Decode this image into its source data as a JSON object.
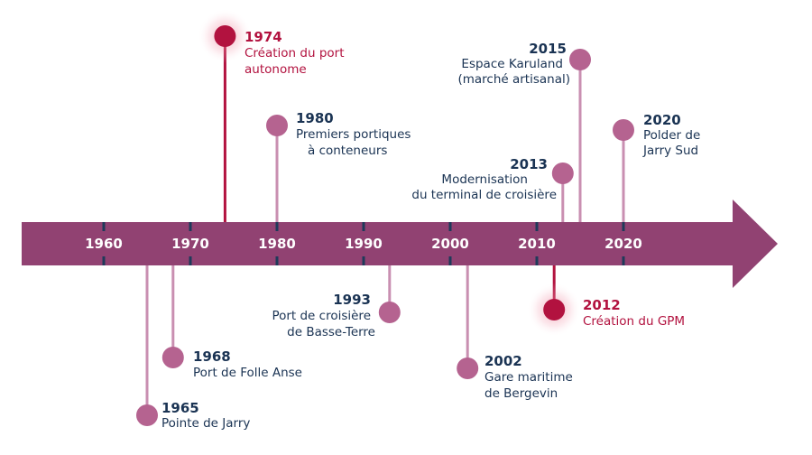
{
  "colors": {
    "band": "#914272",
    "tick": "#1f3a5a",
    "stem": "#c98fb1",
    "dot": "#b56390",
    "highlight": "#b2123f",
    "year_text": "#1a3353",
    "label_text": "#1a3353",
    "decade_text": "#ffffff"
  },
  "decades": [
    "1960",
    "1970",
    "1980",
    "1990",
    "2000",
    "2010",
    "2020"
  ],
  "events": [
    {
      "year": "1965",
      "lines": [
        "Pointe de Jarry"
      ],
      "side": "below",
      "highlight": false
    },
    {
      "year": "1968",
      "lines": [
        "Port de Folle Anse"
      ],
      "side": "below",
      "highlight": false
    },
    {
      "year": "1974",
      "lines": [
        "Création du port",
        "autonome"
      ],
      "side": "above",
      "highlight": true
    },
    {
      "year": "1980",
      "lines": [
        "Premiers portiques",
        "à conteneurs"
      ],
      "side": "above",
      "highlight": false
    },
    {
      "year": "1993",
      "lines": [
        "Port de croisière",
        "de Basse-Terre"
      ],
      "side": "below",
      "highlight": false
    },
    {
      "year": "2002",
      "lines": [
        "Gare maritime",
        "de Bergevin"
      ],
      "side": "below",
      "highlight": false
    },
    {
      "year": "2012",
      "lines": [
        "Création du GPM"
      ],
      "side": "below",
      "highlight": true
    },
    {
      "year": "2013",
      "lines": [
        "Modernisation",
        "du terminal de croisière"
      ],
      "side": "above",
      "highlight": false
    },
    {
      "year": "2015",
      "lines": [
        "Espace Karuland",
        "(marché artisanal)"
      ],
      "side": "above",
      "highlight": false
    },
    {
      "year": "2020",
      "lines": [
        "Polder de",
        "Jarry Sud"
      ],
      "side": "above",
      "highlight": false
    }
  ]
}
